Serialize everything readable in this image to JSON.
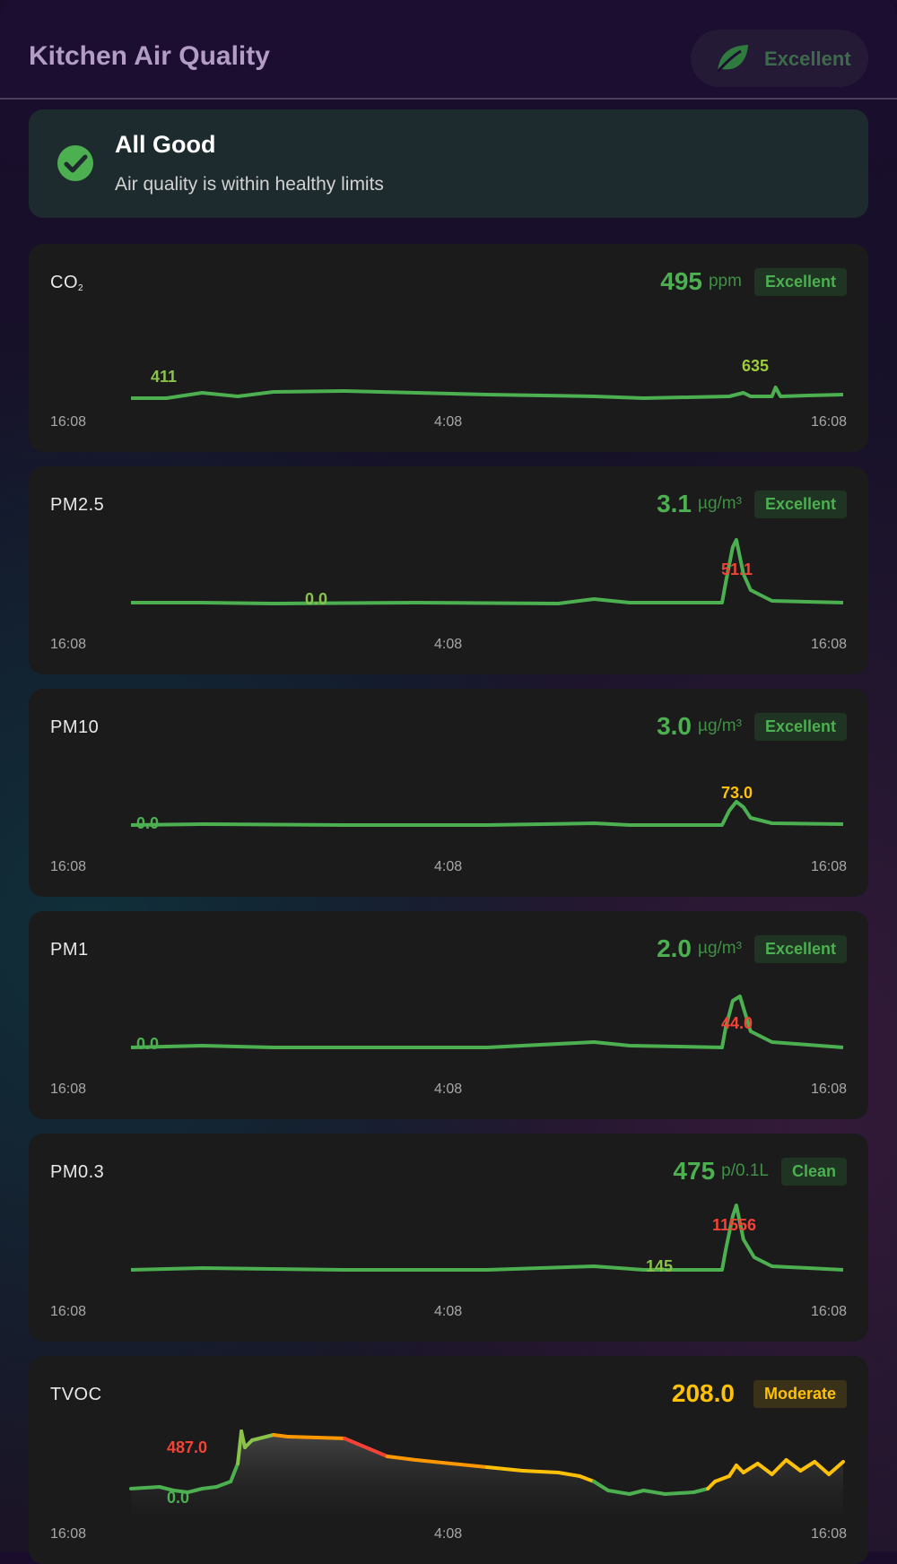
{
  "header": {
    "title": "Kitchen Air Quality",
    "badge_label": "Excellent",
    "badge_icon": "leaf-icon"
  },
  "alert": {
    "icon": "check-circle-icon",
    "title": "All Good",
    "message": "Air quality is within healthy limits"
  },
  "colors": {
    "good": "#4caf50",
    "moderate": "#ffc107",
    "elevated": "#ff9800",
    "high": "#f44336"
  },
  "sensors": [
    {
      "id": "co2",
      "label": "CO",
      "label_sub": "2",
      "value": "495",
      "unit": "ppm",
      "status": "Excellent",
      "level": "good",
      "time_labels": [
        "16:08",
        "4:08",
        "16:08"
      ],
      "min_label": "411",
      "max_label": "635"
    },
    {
      "id": "pm25",
      "label": "PM2.5",
      "label_sub": "",
      "value": "3.1",
      "unit": "µg/m³",
      "status": "Excellent",
      "level": "good",
      "time_labels": [
        "16:08",
        "4:08",
        "16:08"
      ],
      "min_label": "0.0",
      "max_label": "51.1"
    },
    {
      "id": "pm10",
      "label": "PM10",
      "label_sub": "",
      "value": "3.0",
      "unit": "µg/m³",
      "status": "Excellent",
      "level": "good",
      "time_labels": [
        "16:08",
        "4:08",
        "16:08"
      ],
      "min_label": "0.0",
      "max_label": "73.0"
    },
    {
      "id": "pm1",
      "label": "PM1",
      "label_sub": "",
      "value": "2.0",
      "unit": "µg/m³",
      "status": "Excellent",
      "level": "good",
      "time_labels": [
        "16:08",
        "4:08",
        "16:08"
      ],
      "min_label": "0.0",
      "max_label": "44.0"
    },
    {
      "id": "pm03",
      "label": "PM0.3",
      "label_sub": "",
      "value": "475",
      "unit": "p/0.1L",
      "status": "Clean",
      "level": "good",
      "time_labels": [
        "16:08",
        "4:08",
        "16:08"
      ],
      "min_label": "145",
      "max_label": "11556"
    },
    {
      "id": "tvoc",
      "label": "TVOC",
      "label_sub": "",
      "value": "208.0",
      "unit": "",
      "status": "Moderate",
      "level": "mod",
      "time_labels": [
        "16:08",
        "4:08",
        "16:08"
      ],
      "min_label": "0.0",
      "max_label": "487.0"
    }
  ]
}
